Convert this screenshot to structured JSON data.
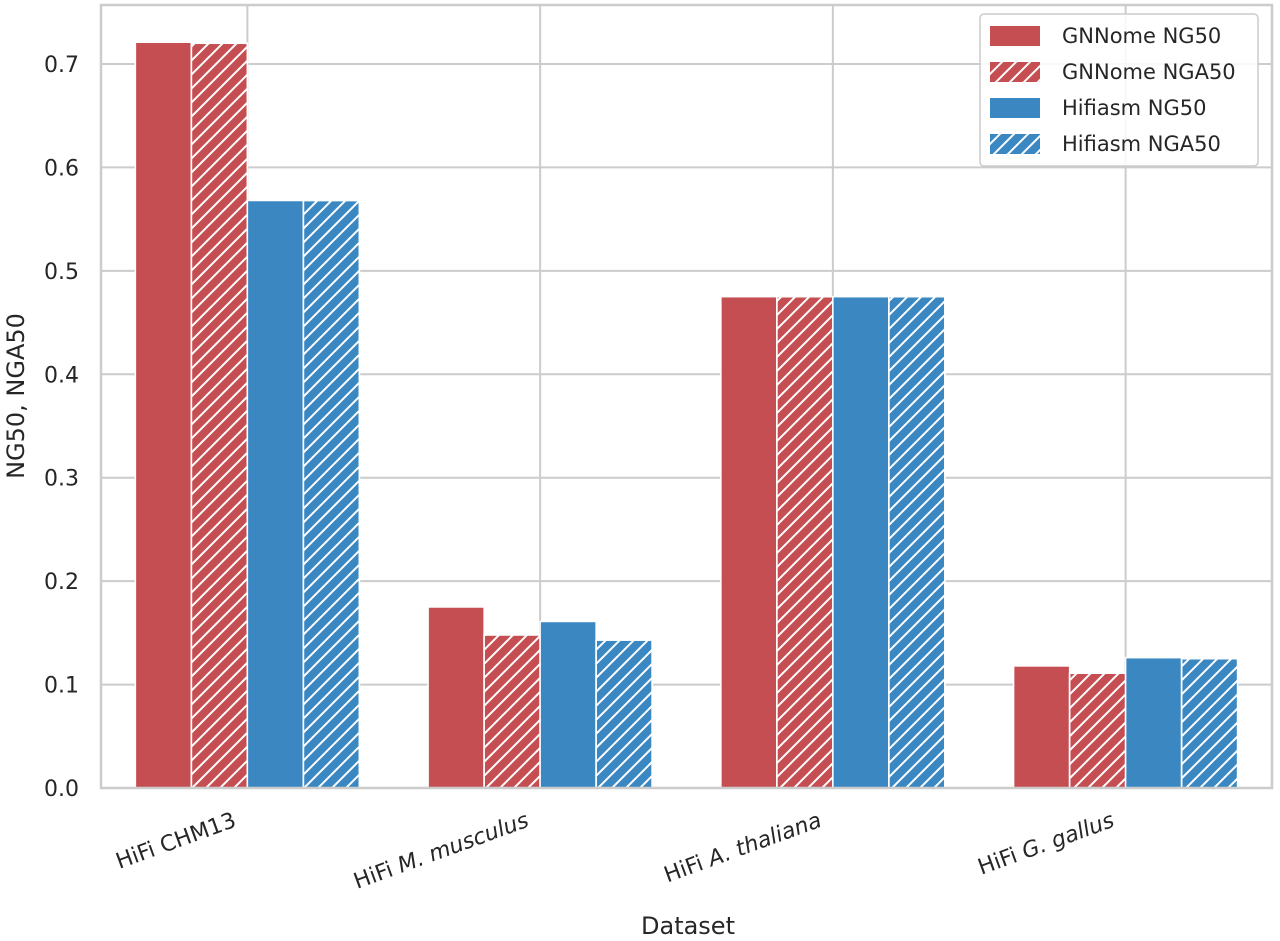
{
  "chart_data": {
    "type": "bar",
    "categories": [
      "HiFi CHM13",
      "HiFi M. musculus",
      "HiFi A. thaliana",
      "HiFi G. gallus"
    ],
    "category_display": [
      {
        "plain": "HiFi CHM13",
        "italic": ""
      },
      {
        "plain": "HiFi ",
        "italic": "M. musculus"
      },
      {
        "plain": "HiFi ",
        "italic": "A. thaliana"
      },
      {
        "plain": "HiFi ",
        "italic": "G. gallus"
      }
    ],
    "series": [
      {
        "name": "GNNome NG50",
        "values": [
          0.721,
          0.175,
          0.475,
          0.118
        ],
        "color": "#c44e52",
        "hatched": false
      },
      {
        "name": "GNNome NGA50",
        "values": [
          0.72,
          0.148,
          0.475,
          0.111
        ],
        "color": "#c44e52",
        "hatched": true
      },
      {
        "name": "Hifiasm NG50",
        "values": [
          0.568,
          0.161,
          0.475,
          0.126
        ],
        "color": "#3a87c2",
        "hatched": false
      },
      {
        "name": "Hifiasm NGA50",
        "values": [
          0.568,
          0.143,
          0.475,
          0.125
        ],
        "color": "#3a87c2",
        "hatched": true
      }
    ],
    "title": "",
    "xlabel": "Dataset",
    "ylabel": "NG50, NGA50",
    "ylim": [
      0.0,
      0.757
    ],
    "yticks": [
      "0.0",
      "0.1",
      "0.2",
      "0.3",
      "0.4",
      "0.5",
      "0.6",
      "0.7"
    ],
    "grid": true,
    "legend_position": "top-right"
  }
}
